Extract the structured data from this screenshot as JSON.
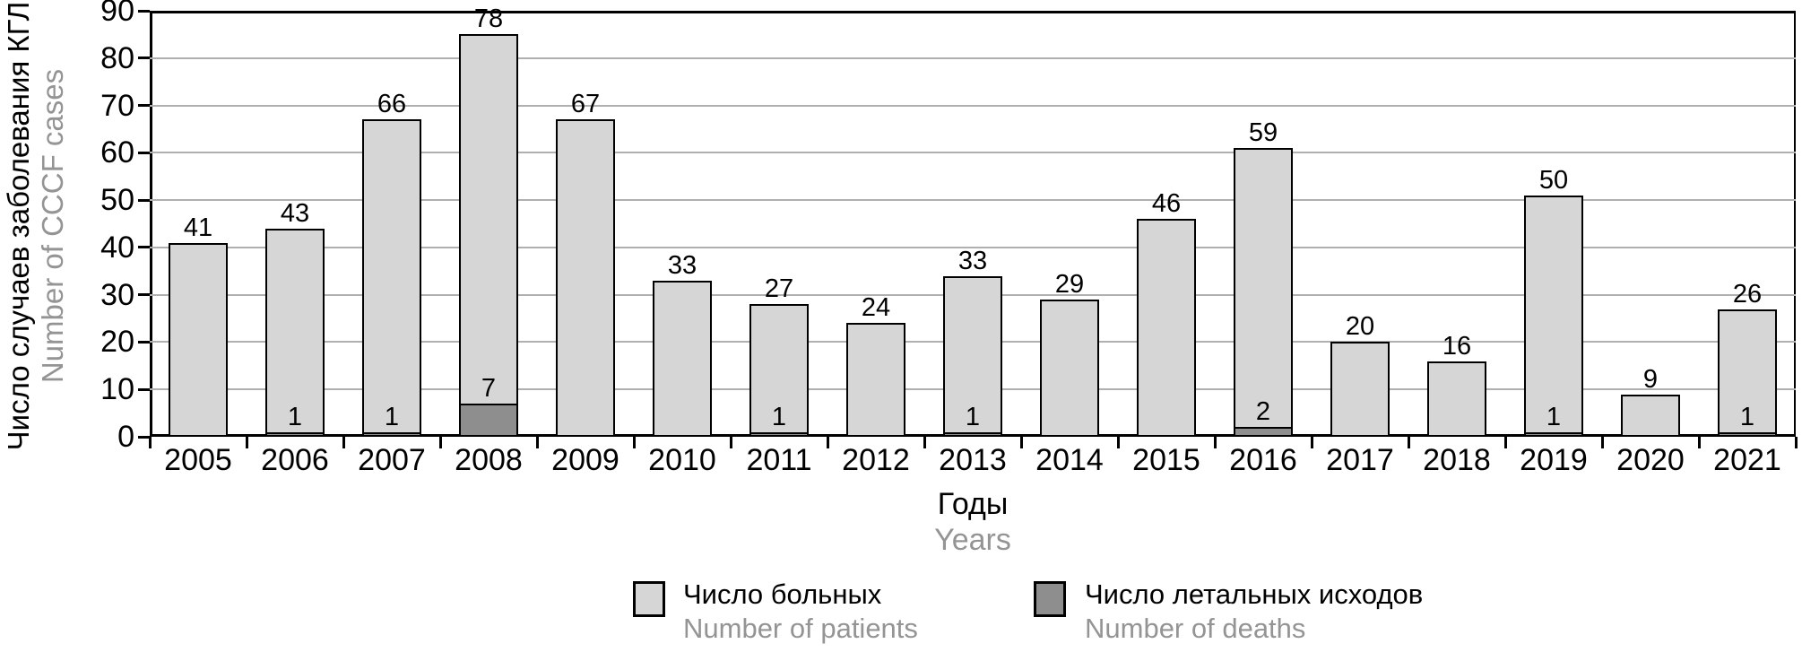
{
  "chart_data": {
    "type": "bar",
    "stacked": true,
    "title": "",
    "categories": [
      "2005",
      "2006",
      "2007",
      "2008",
      "2009",
      "2010",
      "2011",
      "2012",
      "2013",
      "2014",
      "2015",
      "2016",
      "2017",
      "2018",
      "2019",
      "2020",
      "2021"
    ],
    "series": [
      {
        "name_ru": "Число больных",
        "name_en": "Number of patients",
        "color": "#d6d6d6",
        "values": [
          41,
          43,
          66,
          78,
          67,
          33,
          27,
          24,
          33,
          29,
          46,
          59,
          20,
          16,
          50,
          9,
          26
        ]
      },
      {
        "name_ru": "Число летальных исходов",
        "name_en": "Number of deaths",
        "color": "#8e8e8e",
        "values": [
          0,
          1,
          1,
          7,
          0,
          0,
          1,
          0,
          1,
          0,
          0,
          2,
          0,
          0,
          1,
          0,
          1
        ]
      }
    ],
    "ylabel_ru": "Число случаев заболевания КГЛ",
    "ylabel_en": "Number of CCCF cases",
    "xlabel_ru": "Годы",
    "xlabel_en": "Years",
    "ylim": [
      0,
      90
    ],
    "yticks": [
      0,
      10,
      20,
      30,
      40,
      50,
      60,
      70,
      80,
      90
    ],
    "grid": "horizontal",
    "legend_position": "bottom",
    "colors": {
      "axis": "#000000",
      "gridline": "#b0b0b0",
      "secondary_text": "#949494"
    }
  }
}
